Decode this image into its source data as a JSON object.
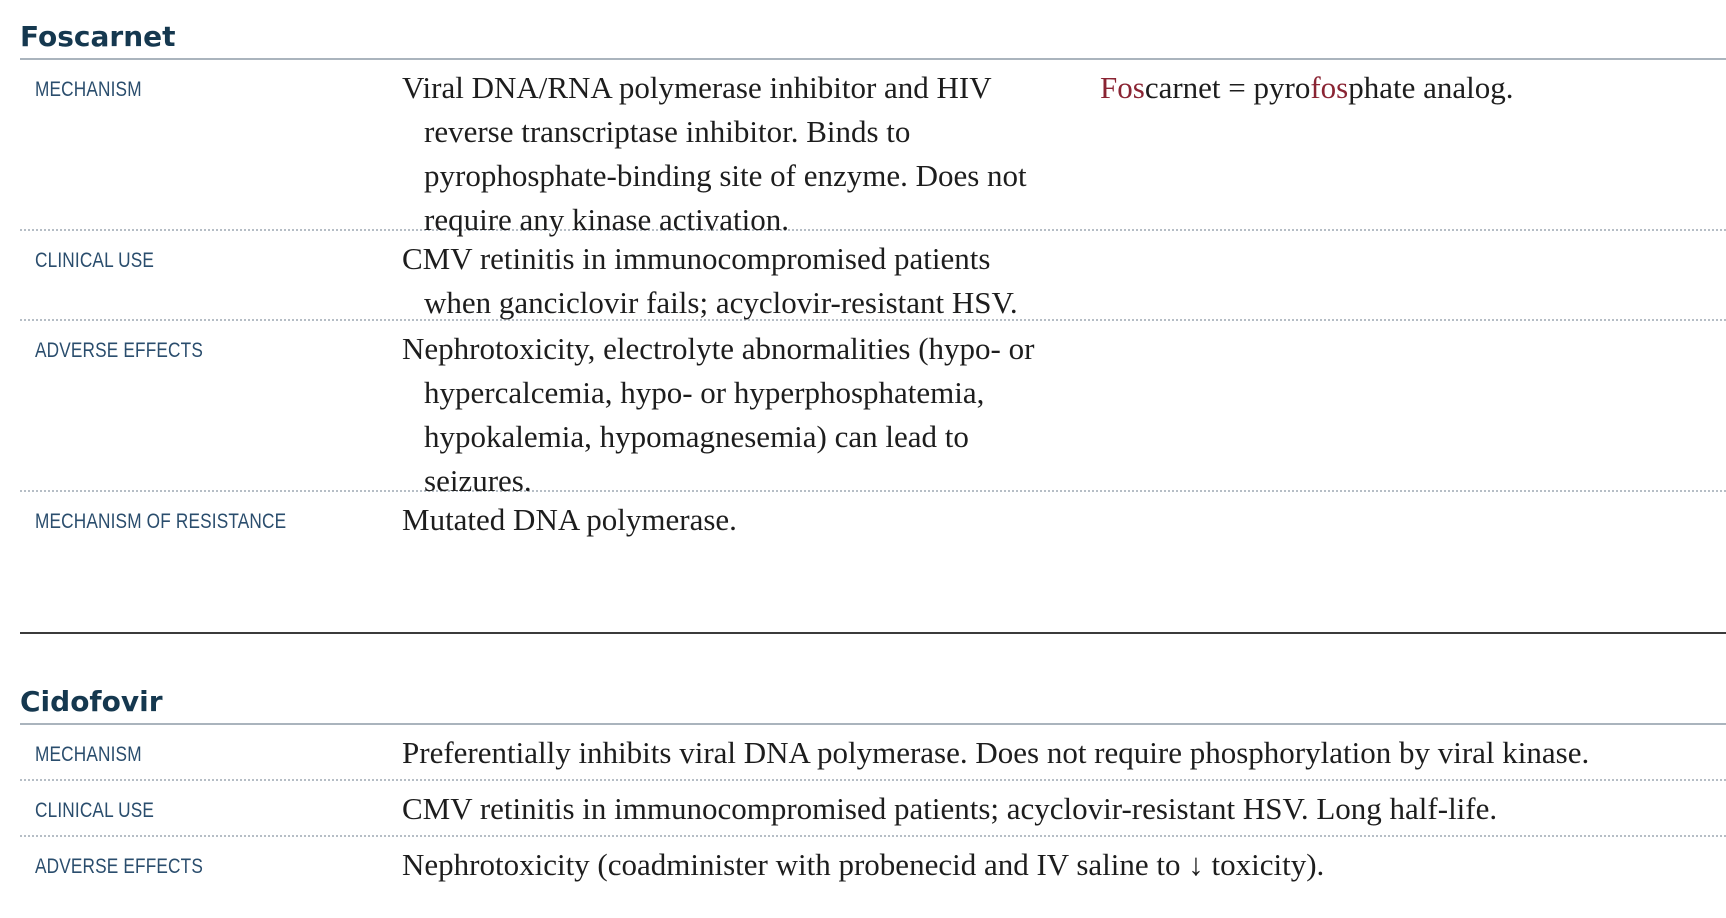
{
  "foscarnet": {
    "title": "Foscarnet",
    "rows": [
      {
        "label": "MECHANISM",
        "text": "Viral DNA/RNA polymerase inhibitor and HIV reverse transcriptase inhibitor. Binds to pyrophosphate-binding site of enzyme. Does not require any kinase activation."
      },
      {
        "label": "CLINICAL USE",
        "text": "CMV retinitis in immunocompromised patients when ganciclovir fails; acyclovir-resistant HSV."
      },
      {
        "label": "ADVERSE EFFECTS",
        "text": "Nephrotoxicity, electrolyte abnormalities (hypo- or hypercalcemia, hypo- or hyperphosphatemia, hypokalemia, hypomagnesemia) can lead to seizures."
      },
      {
        "label": "MECHANISM OF RESISTANCE",
        "text": "Mutated DNA polymerase."
      }
    ],
    "mnemonic": {
      "part1": "Fos",
      "part2": "carnet = pyro",
      "part3": "fos",
      "part4": "phate analog."
    }
  },
  "cidofovir": {
    "title": "Cidofovir",
    "rows": [
      {
        "label": "MECHANISM",
        "text": "Preferentially inhibits viral DNA polymerase. Does not require phosphorylation by viral kinase."
      },
      {
        "label": "CLINICAL USE",
        "text": "CMV retinitis in immunocompromised patients; acyclovir-resistant HSV. Long half-life."
      },
      {
        "label": "ADVERSE EFFECTS",
        "text": "Nephrotoxicity (coadminister with probenecid and IV saline to ↓ toxicity)."
      }
    ]
  },
  "colors": {
    "heading": "#15384f",
    "label": "#2a4d6d",
    "highlight": "#8a2433",
    "body": "#1d1d1d"
  }
}
